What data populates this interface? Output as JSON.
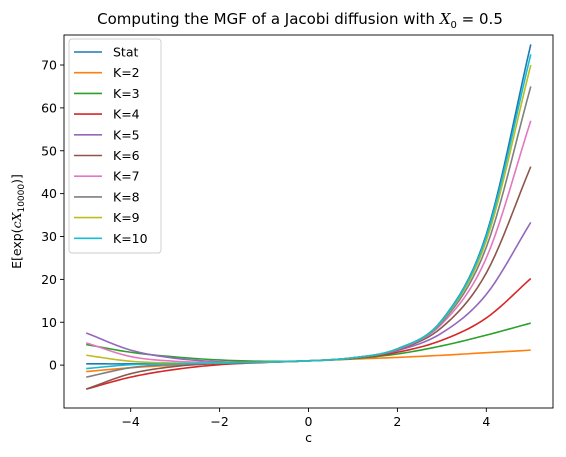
{
  "chart_data": {
    "type": "line",
    "title": {
      "text": "Computing the MGF of a Jacobi diffusion with ",
      "math_var": "X",
      "math_sub": "0",
      "math_rest": " = 0.5"
    },
    "xlabel": "c",
    "ylabel": {
      "prefix": "E[exp(",
      "math_var": "cX",
      "math_sub": "10000",
      "suffix": ")]"
    },
    "xlim": [
      -5.5,
      5.5
    ],
    "ylim": [
      -10,
      77
    ],
    "xticks": [
      -4,
      -2,
      0,
      2,
      4
    ],
    "xtick_labels": [
      "−4",
      "−2",
      "0",
      "2",
      "4"
    ],
    "yticks": [
      0,
      10,
      20,
      30,
      40,
      50,
      60,
      70
    ],
    "ytick_labels": [
      "0",
      "10",
      "20",
      "30",
      "40",
      "50",
      "60",
      "70"
    ],
    "grid": false,
    "legend_position": "top-left",
    "series": [
      {
        "name": "Stat",
        "color": "#1f77b4",
        "x": [
          -5,
          -4,
          -3,
          -2,
          -1,
          0,
          1,
          2,
          3,
          4,
          5
        ],
        "y": [
          0.3,
          0.3,
          0.4,
          0.5,
          0.7,
          1.0,
          1.7,
          3.8,
          10.5,
          30.5,
          74.8
        ]
      },
      {
        "name": "K=2",
        "color": "#ff7f0e",
        "x": [
          -5,
          -4,
          -3,
          -2,
          -1,
          0,
          1,
          2,
          3,
          4,
          5
        ],
        "y": [
          -1.5,
          -0.6,
          0.0,
          0.4,
          0.7,
          1.0,
          1.4,
          1.8,
          2.3,
          2.9,
          3.5
        ]
      },
      {
        "name": "K=3",
        "color": "#2ca02c",
        "x": [
          -5,
          -4,
          -3,
          -2,
          -1,
          0,
          1,
          2,
          3,
          4,
          5
        ],
        "y": [
          4.8,
          3.0,
          1.9,
          1.2,
          0.9,
          1.0,
          1.5,
          2.6,
          4.5,
          7.0,
          9.8
        ]
      },
      {
        "name": "K=4",
        "color": "#d62728",
        "x": [
          -5,
          -4,
          -3,
          -2,
          -1,
          0,
          1,
          2,
          3,
          4,
          5
        ],
        "y": [
          -5.6,
          -2.8,
          -1.0,
          0.1,
          0.6,
          1.0,
          1.6,
          3.0,
          5.8,
          11.0,
          20.2
        ]
      },
      {
        "name": "K=5",
        "color": "#9467bd",
        "x": [
          -5,
          -4,
          -3,
          -2,
          -1,
          0,
          1,
          2,
          3,
          4,
          5
        ],
        "y": [
          7.5,
          3.5,
          1.6,
          0.8,
          0.7,
          1.0,
          1.7,
          3.4,
          7.5,
          16.5,
          33.3
        ]
      },
      {
        "name": "K=6",
        "color": "#8c564b",
        "x": [
          -5,
          -4,
          -3,
          -2,
          -1,
          0,
          1,
          2,
          3,
          4,
          5
        ],
        "y": [
          -5.6,
          -2.0,
          -0.3,
          0.4,
          0.7,
          1.0,
          1.7,
          3.6,
          8.8,
          21.5,
          46.3
        ]
      },
      {
        "name": "K=7",
        "color": "#e377c2",
        "x": [
          -5,
          -4,
          -3,
          -2,
          -1,
          0,
          1,
          2,
          3,
          4,
          5
        ],
        "y": [
          5.2,
          2.0,
          0.9,
          0.6,
          0.7,
          1.0,
          1.7,
          3.7,
          9.6,
          25.0,
          57.0
        ]
      },
      {
        "name": "K=8",
        "color": "#7f7f7f",
        "x": [
          -5,
          -4,
          -3,
          -2,
          -1,
          0,
          1,
          2,
          3,
          4,
          5
        ],
        "y": [
          -2.8,
          -0.6,
          0.2,
          0.5,
          0.7,
          1.0,
          1.7,
          3.8,
          10.0,
          27.5,
          65.0
        ]
      },
      {
        "name": "K=9",
        "color": "#bcbd22",
        "x": [
          -5,
          -4,
          -3,
          -2,
          -1,
          0,
          1,
          2,
          3,
          4,
          5
        ],
        "y": [
          2.3,
          0.9,
          0.5,
          0.5,
          0.7,
          1.0,
          1.7,
          3.8,
          10.3,
          29.0,
          70.0
        ]
      },
      {
        "name": "K=10",
        "color": "#17becf",
        "x": [
          -5,
          -4,
          -3,
          -2,
          -1,
          0,
          1,
          2,
          3,
          4,
          5
        ],
        "y": [
          -0.8,
          0.1,
          0.3,
          0.5,
          0.7,
          1.0,
          1.7,
          3.8,
          10.4,
          30.0,
          72.5
        ]
      }
    ]
  }
}
